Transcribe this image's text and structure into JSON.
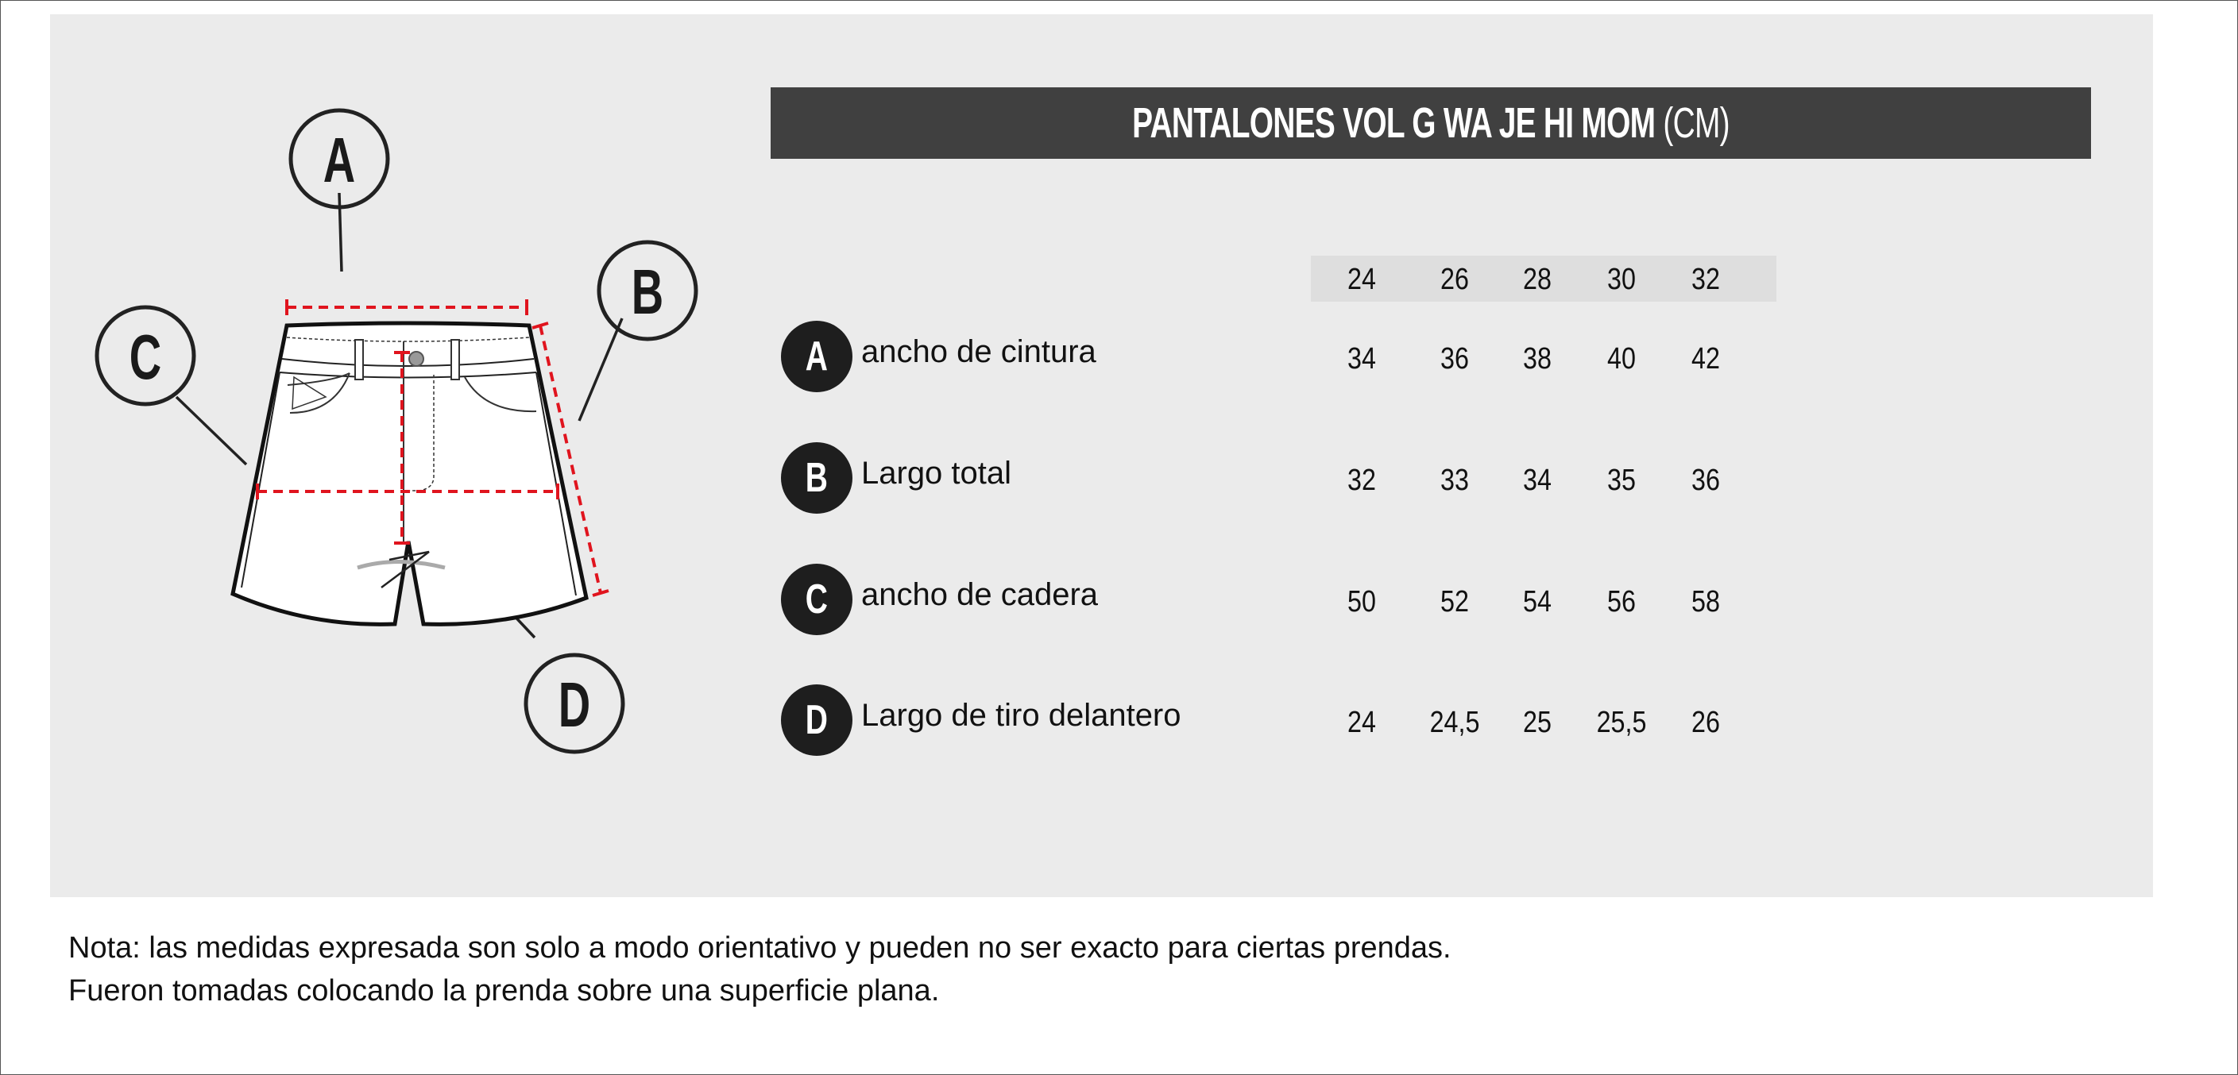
{
  "title": {
    "main": "PANTALONES VOL G WA JE HI MOM",
    "unit": "(CM)"
  },
  "diagram": {
    "labels": [
      "A",
      "B",
      "C",
      "D"
    ]
  },
  "table": {
    "sizes": [
      "24",
      "26",
      "28",
      "30",
      "32"
    ],
    "rows": [
      {
        "badge": "A",
        "label": "ancho de cintura",
        "values": [
          "34",
          "36",
          "38",
          "40",
          "42"
        ]
      },
      {
        "badge": "B",
        "label": "Largo total",
        "values": [
          "32",
          "33",
          "34",
          "35",
          "36"
        ]
      },
      {
        "badge": "C",
        "label": "ancho de cadera",
        "values": [
          "50",
          "52",
          "54",
          "56",
          "58"
        ]
      },
      {
        "badge": "D",
        "label": "Largo de tiro delantero",
        "values": [
          "24",
          "24,5",
          "25",
          "25,5",
          "26"
        ]
      }
    ]
  },
  "note": {
    "line1": "Nota: las medidas expresada son solo a modo orientativo y pueden no ser exacto para ciertas prendas.",
    "line2": "Fueron tomadas colocando la prenda sobre una superficie plana."
  },
  "colors": {
    "panel": "#ebebeb",
    "title_bar": "#404040",
    "measure_line": "#e0141e",
    "badge": "#1e1e1e"
  }
}
